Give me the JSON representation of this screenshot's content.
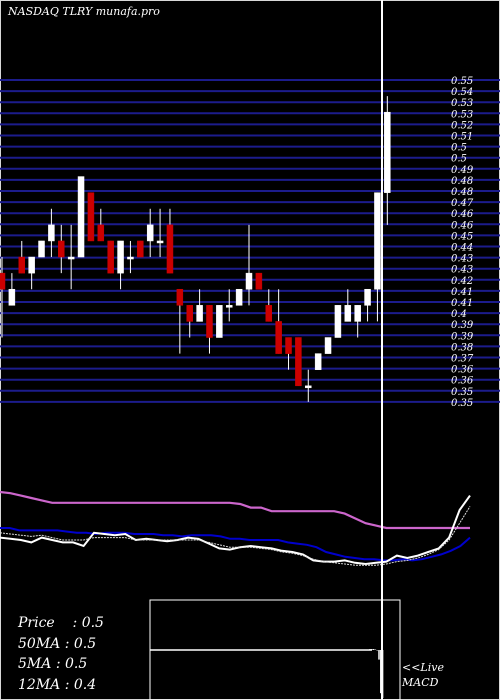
{
  "header": {
    "title": "NASDAQ TLRY munafa.pro"
  },
  "stats": [
    {
      "label": "Price",
      "value": "0.5"
    },
    {
      "label": "50MA",
      "value": "0.5"
    },
    {
      "label": "5MA",
      "value": "0.5"
    },
    {
      "label": "12MA",
      "value": "0.4"
    }
  ],
  "macd_labels": {
    "line1": "<<Live",
    "line2": "MACD"
  },
  "colors": {
    "background": "#000000",
    "grid": "#1c1c8c",
    "up_candle": "#ffffff",
    "down_candle": "#cc0000",
    "ma_long": "#cc66cc",
    "ma_mid": "#0000cc",
    "price_line": "#ffffff",
    "cursor": "#ffffff"
  },
  "chart_data": [
    {
      "type": "candlestick",
      "title": "NASDAQ TLRY munafa.pro",
      "y_tick_labels": [
        "0.55",
        "0.54",
        "0.53",
        "0.53",
        "0.52",
        "0.51",
        "0.5",
        "0.5",
        "0.49",
        "0.48",
        "0.48",
        "0.47",
        "0.46",
        "0.46",
        "0.45",
        "0.44",
        "0.43",
        "0.43",
        "0.42",
        "0.41",
        "0.41",
        "0.4",
        "0.39",
        "0.39",
        "0.38",
        "0.37",
        "0.36",
        "0.36",
        "0.35",
        "0.35"
      ],
      "ylim": [
        0.35,
        0.55
      ],
      "candles": [
        {
          "o": 0.43,
          "h": 0.44,
          "l": 0.39,
          "c": 0.42
        },
        {
          "o": 0.41,
          "h": 0.43,
          "l": 0.41,
          "c": 0.42
        },
        {
          "o": 0.44,
          "h": 0.45,
          "l": 0.43,
          "c": 0.43
        },
        {
          "o": 0.43,
          "h": 0.44,
          "l": 0.42,
          "c": 0.44
        },
        {
          "o": 0.44,
          "h": 0.45,
          "l": 0.44,
          "c": 0.45
        },
        {
          "o": 0.45,
          "h": 0.47,
          "l": 0.44,
          "c": 0.46
        },
        {
          "o": 0.45,
          "h": 0.46,
          "l": 0.43,
          "c": 0.44
        },
        {
          "o": 0.44,
          "h": 0.46,
          "l": 0.42,
          "c": 0.44
        },
        {
          "o": 0.44,
          "h": 0.49,
          "l": 0.44,
          "c": 0.49
        },
        {
          "o": 0.48,
          "h": 0.48,
          "l": 0.45,
          "c": 0.45
        },
        {
          "o": 0.46,
          "h": 0.47,
          "l": 0.45,
          "c": 0.45
        },
        {
          "o": 0.45,
          "h": 0.45,
          "l": 0.43,
          "c": 0.43
        },
        {
          "o": 0.43,
          "h": 0.45,
          "l": 0.42,
          "c": 0.45
        },
        {
          "o": 0.44,
          "h": 0.45,
          "l": 0.43,
          "c": 0.44
        },
        {
          "o": 0.45,
          "h": 0.45,
          "l": 0.44,
          "c": 0.44
        },
        {
          "o": 0.45,
          "h": 0.47,
          "l": 0.44,
          "c": 0.46
        },
        {
          "o": 0.45,
          "h": 0.47,
          "l": 0.44,
          "c": 0.45
        },
        {
          "o": 0.46,
          "h": 0.47,
          "l": 0.43,
          "c": 0.43
        },
        {
          "o": 0.42,
          "h": 0.42,
          "l": 0.38,
          "c": 0.41
        },
        {
          "o": 0.41,
          "h": 0.41,
          "l": 0.39,
          "c": 0.4
        },
        {
          "o": 0.4,
          "h": 0.42,
          "l": 0.4,
          "c": 0.41
        },
        {
          "o": 0.41,
          "h": 0.41,
          "l": 0.38,
          "c": 0.39
        },
        {
          "o": 0.39,
          "h": 0.41,
          "l": 0.39,
          "c": 0.41
        },
        {
          "o": 0.41,
          "h": 0.42,
          "l": 0.4,
          "c": 0.41
        },
        {
          "o": 0.41,
          "h": 0.42,
          "l": 0.41,
          "c": 0.42
        },
        {
          "o": 0.42,
          "h": 0.46,
          "l": 0.41,
          "c": 0.43
        },
        {
          "o": 0.43,
          "h": 0.43,
          "l": 0.42,
          "c": 0.42
        },
        {
          "o": 0.41,
          "h": 0.42,
          "l": 0.4,
          "c": 0.4
        },
        {
          "o": 0.4,
          "h": 0.42,
          "l": 0.38,
          "c": 0.38
        },
        {
          "o": 0.39,
          "h": 0.39,
          "l": 0.37,
          "c": 0.38
        },
        {
          "o": 0.39,
          "h": 0.39,
          "l": 0.36,
          "c": 0.36
        },
        {
          "o": 0.36,
          "h": 0.37,
          "l": 0.35,
          "c": 0.36
        },
        {
          "o": 0.37,
          "h": 0.38,
          "l": 0.37,
          "c": 0.38
        },
        {
          "o": 0.38,
          "h": 0.39,
          "l": 0.38,
          "c": 0.39
        },
        {
          "o": 0.39,
          "h": 0.41,
          "l": 0.39,
          "c": 0.41
        },
        {
          "o": 0.4,
          "h": 0.42,
          "l": 0.4,
          "c": 0.41
        },
        {
          "o": 0.4,
          "h": 0.41,
          "l": 0.39,
          "c": 0.41
        },
        {
          "o": 0.41,
          "h": 0.42,
          "l": 0.4,
          "c": 0.42
        },
        {
          "o": 0.42,
          "h": 0.48,
          "l": 0.4,
          "c": 0.48
        },
        {
          "o": 0.48,
          "h": 0.54,
          "l": 0.46,
          "c": 0.53
        }
      ]
    },
    {
      "type": "line",
      "series": [
        {
          "values": [
            0.9,
            0.89,
            0.87,
            0.85,
            0.83,
            0.81,
            0.81,
            0.81,
            0.81,
            0.81,
            0.81,
            0.81,
            0.81,
            0.81,
            0.81,
            0.81,
            0.81,
            0.81,
            0.81,
            0.81,
            0.81,
            0.81,
            0.81,
            0.8,
            0.77,
            0.77,
            0.74,
            0.74,
            0.74,
            0.74,
            0.74,
            0.74,
            0.74,
            0.72,
            0.68,
            0.64,
            0.62,
            0.6,
            0.6,
            0.6,
            0.6,
            0.6,
            0.6,
            0.6,
            0.6,
            0.6
          ]
        },
        {
          "values": [
            0.6,
            0.6,
            0.58,
            0.58,
            0.58,
            0.58,
            0.58,
            0.57,
            0.56,
            0.56,
            0.55,
            0.56,
            0.56,
            0.56,
            0.55,
            0.55,
            0.55,
            0.54,
            0.54,
            0.53,
            0.54,
            0.54,
            0.54,
            0.53,
            0.51,
            0.51,
            0.5,
            0.5,
            0.5,
            0.5,
            0.48,
            0.47,
            0.46,
            0.44,
            0.4,
            0.38,
            0.36,
            0.35,
            0.34,
            0.34,
            0.33,
            0.33,
            0.34,
            0.33,
            0.34,
            0.36,
            0.38,
            0.41,
            0.45,
            0.52
          ]
        },
        {
          "values": [
            0.52,
            0.51,
            0.5,
            0.48,
            0.52,
            0.5,
            0.48,
            0.48,
            0.45,
            0.56,
            0.55,
            0.54,
            0.55,
            0.5,
            0.51,
            0.5,
            0.49,
            0.5,
            0.52,
            0.51,
            0.47,
            0.43,
            0.42,
            0.44,
            0.45,
            0.44,
            0.43,
            0.41,
            0.4,
            0.38,
            0.33,
            0.32,
            0.32,
            0.33,
            0.31,
            0.3,
            0.31,
            0.32,
            0.37,
            0.35,
            0.37,
            0.4,
            0.43,
            0.52,
            0.75,
            0.87
          ]
        },
        {
          "values": [
            0.56,
            0.55,
            0.54,
            0.53,
            0.54,
            0.52,
            0.5,
            0.5,
            0.5,
            0.52,
            0.52,
            0.52,
            0.52,
            0.5,
            0.5,
            0.5,
            0.5,
            0.5,
            0.5,
            0.5,
            0.48,
            0.46,
            0.44,
            0.44,
            0.44,
            0.43,
            0.42,
            0.4,
            0.39,
            0.37,
            0.34,
            0.32,
            0.31,
            0.3,
            0.29,
            0.29,
            0.29,
            0.3,
            0.32,
            0.33,
            0.35,
            0.38,
            0.42,
            0.5,
            0.64,
            0.78
          ]
        }
      ]
    },
    {
      "type": "macd",
      "values": [
        0.02,
        0.02,
        0.02,
        0.01,
        -0.01,
        -0.2,
        -0.9,
        -1.0
      ]
    }
  ]
}
